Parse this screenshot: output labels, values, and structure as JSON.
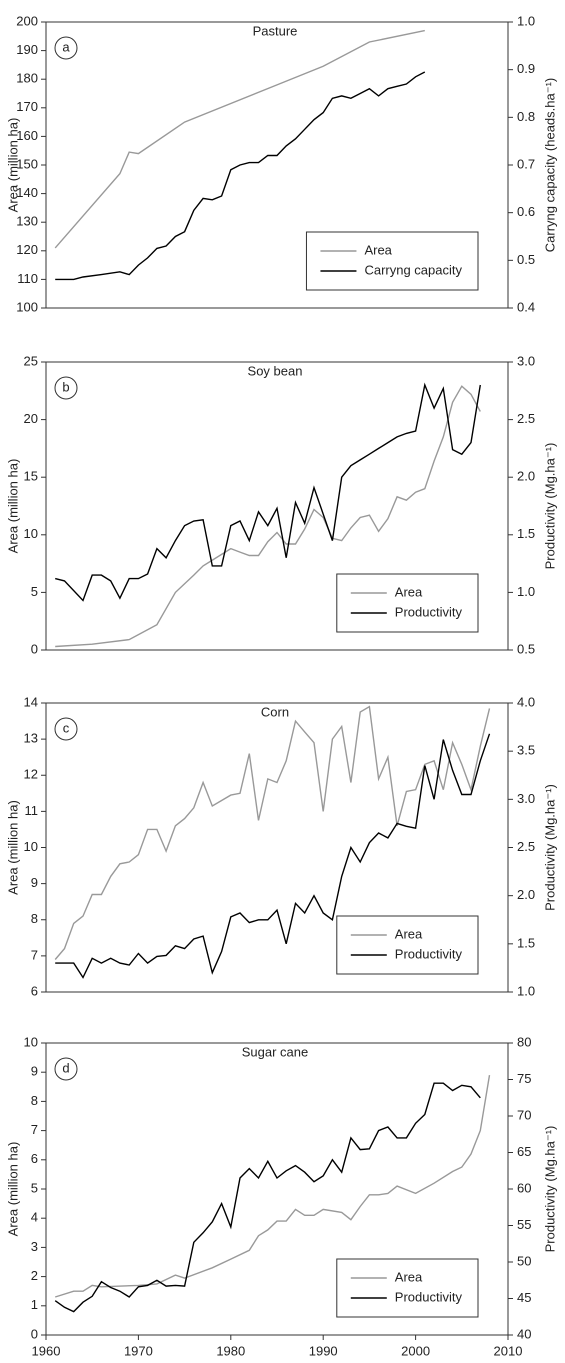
{
  "chart_data": [
    {
      "type": "line",
      "title": "Pasture",
      "panel_label": "a",
      "ylabel": "Area (million ha)",
      "y2label": "Carryng capacity (heads.ha⁻¹)",
      "xlim": [
        1960,
        2010
      ],
      "ylim": [
        100,
        200
      ],
      "yticks": [
        100,
        110,
        120,
        130,
        140,
        150,
        160,
        170,
        180,
        190,
        200
      ],
      "y2lim": [
        0.4,
        1.0
      ],
      "y2ticks": [
        0.4,
        0.5,
        0.6,
        0.7,
        0.8,
        0.9,
        {
          "value": 1,
          "label": "1.0"
        }
      ],
      "legend": "lower right",
      "series": [
        {
          "name": "Area",
          "color": "#999999",
          "x": [
            1961,
            1968,
            1969,
            1970,
            1975,
            1985,
            1990,
            1995,
            2001
          ],
          "values": [
            121,
            147,
            154.5,
            154,
            165,
            178,
            184.5,
            193,
            197
          ]
        },
        {
          "name": "Carryng capacity",
          "color": "#000000",
          "axis": "y2",
          "x": [
            1961,
            1963,
            1964,
            1966,
            1968,
            1969,
            1970,
            1971,
            1972,
            1973,
            1974,
            1975,
            1976,
            1977,
            1978,
            1979,
            1980,
            1981,
            1982,
            1983,
            1984,
            1985,
            1986,
            1987,
            1988,
            1989,
            1990,
            1991,
            1992,
            1993,
            1994,
            1995,
            1996,
            1997,
            1998,
            1999,
            2000,
            2001
          ],
          "values": [
            0.46,
            0.46,
            0.465,
            0.47,
            0.476,
            0.47,
            0.49,
            0.505,
            0.525,
            0.53,
            0.55,
            0.56,
            0.605,
            0.63,
            0.627,
            0.635,
            0.69,
            0.7,
            0.705,
            0.705,
            0.72,
            0.72,
            0.74,
            0.755,
            0.775,
            0.795,
            0.81,
            0.84,
            0.845,
            0.84,
            0.85,
            0.86,
            0.845,
            0.86,
            0.865,
            0.87,
            0.885,
            0.895
          ]
        }
      ]
    },
    {
      "type": "line",
      "title": "Soy bean",
      "panel_label": "b",
      "ylabel": "Area (million ha)",
      "y2label": "Productivity (Mg.ha⁻¹)",
      "xlim": [
        1960,
        2010
      ],
      "ylim": [
        0,
        25
      ],
      "yticks": [
        0,
        5,
        10,
        15,
        20,
        25
      ],
      "y2lim": [
        0.5,
        3.0
      ],
      "y2ticks": [
        0.5,
        {
          "value": 1,
          "label": "1.0"
        },
        1.5,
        {
          "value": 2,
          "label": "2.0"
        },
        2.5,
        {
          "value": 3,
          "label": "3.0"
        }
      ],
      "legend": "lower right",
      "series": [
        {
          "name": "Area",
          "color": "#999999",
          "x": [
            1961,
            1965,
            1969,
            1972,
            1974,
            1976,
            1977,
            1979,
            1980,
            1981,
            1982,
            1983,
            1984,
            1985,
            1986,
            1987,
            1988,
            1989,
            1990,
            1991,
            1992,
            1993,
            1994,
            1995,
            1996,
            1997,
            1998,
            1999,
            2000,
            2001,
            2002,
            2003,
            2004,
            2005,
            2006,
            2007
          ],
          "values": [
            0.3,
            0.5,
            0.9,
            2.2,
            5.0,
            6.5,
            7.3,
            8.3,
            8.8,
            8.5,
            8.2,
            8.2,
            9.4,
            10.2,
            9.2,
            9.2,
            10.5,
            12.2,
            11.5,
            9.7,
            9.5,
            10.6,
            11.5,
            11.7,
            10.3,
            11.4,
            13.3,
            13.0,
            13.7,
            14.0,
            16.4,
            18.5,
            21.5,
            22.9,
            22.2,
            20.7
          ]
        },
        {
          "name": "Productivity",
          "color": "#000000",
          "axis": "y2",
          "x": [
            1961,
            1962,
            1964,
            1965,
            1966,
            1967,
            1968,
            1969,
            1970,
            1971,
            1972,
            1973,
            1974,
            1975,
            1976,
            1977,
            1978,
            1979,
            1980,
            1981,
            1982,
            1983,
            1984,
            1985,
            1986,
            1987,
            1988,
            1989,
            1990,
            1991,
            1992,
            1993,
            1994,
            1995,
            1996,
            1997,
            1998,
            1999,
            2000,
            2001,
            2002,
            2003,
            2004,
            2005,
            2006,
            2007
          ],
          "values": [
            1.12,
            1.1,
            0.93,
            1.15,
            1.15,
            1.1,
            0.95,
            1.12,
            1.12,
            1.16,
            1.38,
            1.3,
            1.45,
            1.58,
            1.62,
            1.63,
            1.23,
            1.23,
            1.58,
            1.62,
            1.45,
            1.7,
            1.58,
            1.73,
            1.3,
            1.78,
            1.6,
            1.91,
            1.68,
            1.45,
            2.0,
            2.1,
            2.15,
            2.2,
            2.25,
            2.3,
            2.35,
            2.38,
            2.4,
            2.8,
            2.6,
            2.77,
            2.24,
            2.2,
            2.3,
            2.8
          ]
        }
      ]
    },
    {
      "type": "line",
      "title": "Corn",
      "panel_label": "c",
      "ylabel": "Area (million ha)",
      "y2label": "Productivity (Mg.ha⁻¹)",
      "xlim": [
        1960,
        2010
      ],
      "ylim": [
        6,
        14
      ],
      "yticks": [
        6,
        7,
        8,
        9,
        10,
        11,
        12,
        13,
        14
      ],
      "y2lim": [
        1,
        4
      ],
      "y2ticks": [
        {
          "value": 1,
          "label": "1.0"
        },
        1.5,
        {
          "value": 2,
          "label": "2.0"
        },
        2.5,
        {
          "value": 3,
          "label": "3.0"
        },
        3.5,
        {
          "value": 4,
          "label": "4.0"
        }
      ],
      "legend": "lower right",
      "series": [
        {
          "name": "Area",
          "color": "#999999",
          "x": [
            1961,
            1962,
            1963,
            1964,
            1965,
            1966,
            1967,
            1968,
            1969,
            1970,
            1971,
            1972,
            1973,
            1974,
            1975,
            1976,
            1977,
            1978,
            1979,
            1980,
            1981,
            1982,
            1983,
            1984,
            1985,
            1986,
            1987,
            1988,
            1989,
            1990,
            1991,
            1992,
            1993,
            1994,
            1995,
            1996,
            1997,
            1998,
            1999,
            2000,
            2001,
            2002,
            2003,
            2004,
            2005,
            2006,
            2007,
            2008
          ],
          "values": [
            6.9,
            7.2,
            7.9,
            8.1,
            8.7,
            8.7,
            9.2,
            9.55,
            9.6,
            9.8,
            10.5,
            10.5,
            9.9,
            10.6,
            10.8,
            11.1,
            11.8,
            11.15,
            11.3,
            11.45,
            11.5,
            12.6,
            10.75,
            11.9,
            11.8,
            12.4,
            13.5,
            13.2,
            12.9,
            11.0,
            13.0,
            13.35,
            11.8,
            13.75,
            13.9,
            11.9,
            12.5,
            10.6,
            11.55,
            11.6,
            12.3,
            12.4,
            11.6,
            12.9,
            12.3,
            11.6,
            12.8,
            13.85
          ]
        },
        {
          "name": "Productivity",
          "color": "#000000",
          "axis": "y2",
          "x": [
            1961,
            1962,
            1963,
            1964,
            1965,
            1966,
            1967,
            1968,
            1969,
            1970,
            1971,
            1972,
            1973,
            1974,
            1975,
            1976,
            1977,
            1978,
            1979,
            1980,
            1981,
            1982,
            1983,
            1984,
            1985,
            1986,
            1987,
            1988,
            1989,
            1990,
            1991,
            1992,
            1993,
            1994,
            1995,
            1996,
            1997,
            1998,
            1999,
            2000,
            2001,
            2002,
            2003,
            2004,
            2005,
            2006,
            2007,
            2008
          ],
          "values": [
            1.3,
            1.3,
            1.3,
            1.15,
            1.35,
            1.3,
            1.35,
            1.3,
            1.28,
            1.4,
            1.3,
            1.37,
            1.38,
            1.48,
            1.45,
            1.55,
            1.58,
            1.2,
            1.42,
            1.78,
            1.82,
            1.72,
            1.75,
            1.75,
            1.85,
            1.5,
            1.92,
            1.82,
            2.0,
            1.82,
            1.75,
            2.2,
            2.5,
            2.35,
            2.55,
            2.65,
            2.6,
            2.75,
            2.72,
            2.7,
            3.35,
            3.0,
            3.62,
            3.3,
            3.05,
            3.05,
            3.4,
            3.68
          ]
        }
      ]
    },
    {
      "type": "line",
      "title": "Sugar cane",
      "panel_label": "d",
      "ylabel": "Area (million ha)",
      "y2label": "Productivity (Mg.ha⁻¹)",
      "xlim": [
        1960,
        2010
      ],
      "xticks": [
        1960,
        1970,
        1980,
        1990,
        2000,
        2010
      ],
      "ylim": [
        0,
        10
      ],
      "yticks": [
        0,
        1,
        2,
        3,
        4,
        5,
        6,
        7,
        8,
        9,
        10
      ],
      "y2lim": [
        40,
        80
      ],
      "y2ticks": [
        40,
        45,
        50,
        55,
        60,
        65,
        70,
        75,
        80
      ],
      "legend": "lower right",
      "series": [
        {
          "name": "Area",
          "color": "#999999",
          "x": [
            1961,
            1963,
            1964,
            1965,
            1966,
            1970,
            1972,
            1974,
            1975,
            1978,
            1980,
            1982,
            1983,
            1984,
            1985,
            1986,
            1987,
            1988,
            1989,
            1990,
            1992,
            1993,
            1994,
            1995,
            1996,
            1997,
            1998,
            2000,
            2002,
            2004,
            2005,
            2006,
            2007,
            2008
          ],
          "values": [
            1.3,
            1.5,
            1.5,
            1.7,
            1.65,
            1.7,
            1.75,
            2.05,
            1.95,
            2.3,
            2.6,
            2.9,
            3.4,
            3.6,
            3.9,
            3.9,
            4.3,
            4.1,
            4.1,
            4.3,
            4.2,
            3.95,
            4.4,
            4.8,
            4.8,
            4.85,
            5.1,
            4.85,
            5.2,
            5.6,
            5.75,
            6.2,
            7.0,
            8.9
          ]
        },
        {
          "name": "Productivity",
          "color": "#000000",
          "axis": "y2",
          "x": [
            1961,
            1962,
            1963,
            1964,
            1965,
            1966,
            1967,
            1968,
            1969,
            1970,
            1971,
            1972,
            1973,
            1974,
            1975,
            1976,
            1977,
            1978,
            1979,
            1980,
            1981,
            1982,
            1983,
            1984,
            1985,
            1986,
            1987,
            1988,
            1989,
            1990,
            1991,
            1992,
            1993,
            1994,
            1995,
            1996,
            1997,
            1998,
            1999,
            2000,
            2001,
            2002,
            2003,
            2004,
            2005,
            2006,
            2007
          ],
          "values": [
            44.7,
            43.8,
            43.2,
            44.5,
            45.3,
            47.3,
            46.5,
            46.0,
            45.2,
            46.6,
            46.8,
            47.5,
            46.7,
            46.8,
            46.7,
            52.7,
            54.0,
            55.5,
            58.0,
            54.8,
            61.5,
            62.8,
            61.5,
            63.8,
            61.5,
            62.5,
            63.2,
            62.3,
            61.0,
            61.8,
            64.0,
            62.3,
            67.0,
            65.4,
            65.5,
            68.0,
            68.5,
            67.0,
            67.0,
            69.0,
            70.2,
            74.5,
            74.5,
            73.5,
            74.2,
            74.0,
            72.5
          ]
        }
      ]
    }
  ]
}
